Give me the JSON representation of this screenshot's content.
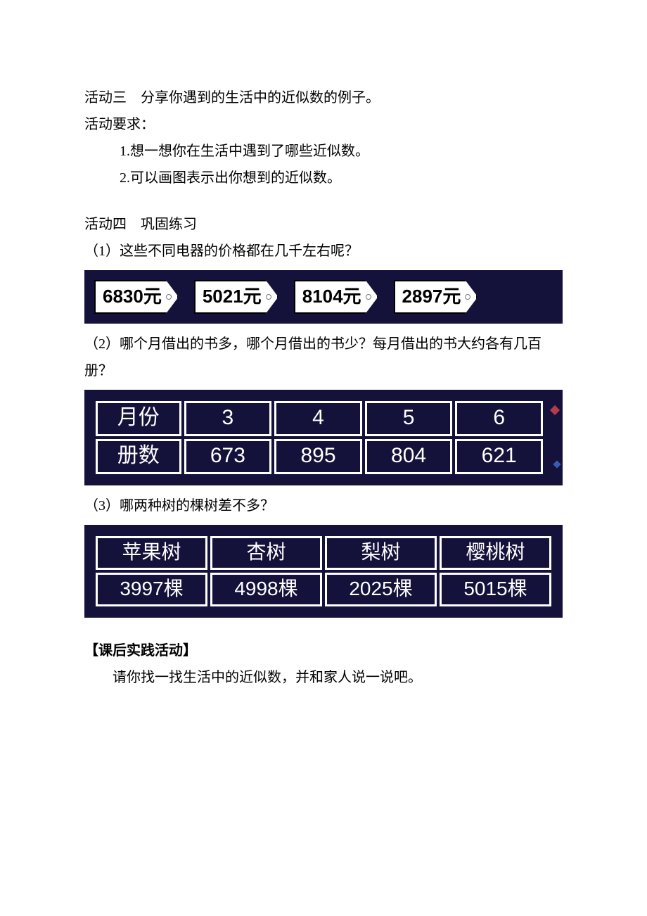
{
  "activity3": {
    "title": "活动三　分享你遇到的生活中的近似数的例子。",
    "req_label": "活动要求：",
    "items": [
      "1.想一想你在生活中遇到了哪些近似数。",
      "2.可以画图表示出你想到的近似数。"
    ]
  },
  "activity4": {
    "title": "活动四　巩固练习",
    "q1": "（1）这些不同电器的价格都在几千左右呢？",
    "prices": [
      "6830元",
      "5021元",
      "8104元",
      "2897元"
    ],
    "q2": "（2）哪个月借出的书多，哪个月借出的书少？每月借出的书大约各有几百册？",
    "books_table": {
      "row1_label": "月份",
      "row2_label": "册数",
      "months": [
        "3",
        "4",
        "5",
        "6"
      ],
      "counts": [
        "673",
        "895",
        "804",
        "621"
      ]
    },
    "q3": "（3）哪两种树的棵树差不多？",
    "tree_table": {
      "headers": [
        "苹果树",
        "杏树",
        "梨树",
        "樱桃树"
      ],
      "values": [
        "3997棵",
        "4998棵",
        "2025棵",
        "5015棵"
      ]
    }
  },
  "post": {
    "heading": "【课后实践活动】",
    "text": "请你找一找生活中的近似数，并和家人说一说吧。"
  },
  "colors": {
    "strip_bg": "#14123a",
    "cell_border": "#ffffff",
    "text": "#000000",
    "cell_text": "#ffffff"
  }
}
